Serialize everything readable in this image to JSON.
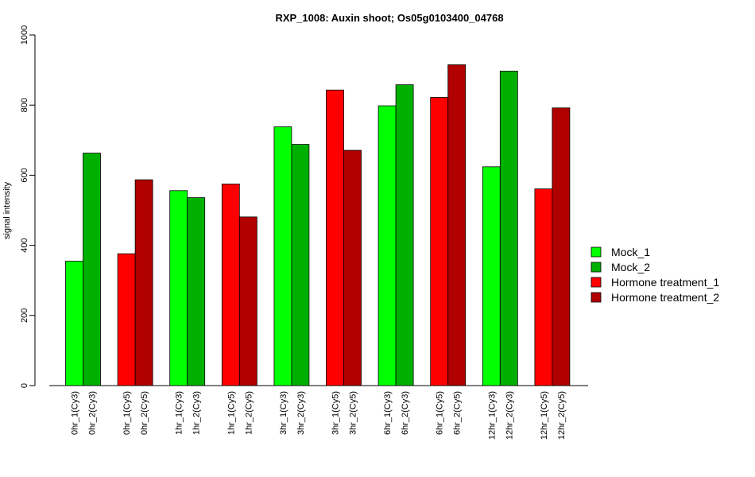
{
  "chart_data": {
    "type": "bar",
    "title": "RXP_1008: Auxin shoot; Os05g0103400_04768",
    "ylabel": "signal intensity",
    "xlabel": "",
    "ylim": [
      0,
      1000
    ],
    "yticks": [
      0,
      200,
      400,
      600,
      800,
      1000
    ],
    "grid": false,
    "legend_position": "right",
    "legend": [
      {
        "name": "Mock_1",
        "color": "#00ff00"
      },
      {
        "name": "Mock_2",
        "color": "#00b000"
      },
      {
        "name": "Hormone treatment_1",
        "color": "#ff0000"
      },
      {
        "name": "Hormone treatment_2",
        "color": "#b00000"
      }
    ],
    "categories": [
      "0hr_1(Cy3)",
      "0hr_2(Cy3)",
      "0hr_1(Cy5)",
      "0hr_2(Cy5)",
      "1hr_1(Cy3)",
      "1hr_2(Cy3)",
      "1hr_1(Cy5)",
      "1hr_2(Cy5)",
      "3hr_1(Cy3)",
      "3hr_2(Cy3)",
      "3hr_1(Cy5)",
      "3hr_2(Cy5)",
      "6hr_1(Cy3)",
      "6hr_2(Cy3)",
      "6hr_1(Cy5)",
      "6hr_2(Cy5)",
      "12hr_1(Cy3)",
      "12hr_2(Cy3)",
      "12hr_1(Cy5)",
      "12hr_2(Cy5)"
    ],
    "values": [
      355,
      663,
      376,
      587,
      556,
      536,
      575,
      481,
      738,
      688,
      843,
      671,
      798,
      858,
      822,
      915,
      624,
      897,
      561,
      792
    ],
    "bar_colors": [
      "#00ff00",
      "#00b000",
      "#ff0000",
      "#b00000",
      "#00ff00",
      "#00b000",
      "#ff0000",
      "#b00000",
      "#00ff00",
      "#00b000",
      "#ff0000",
      "#b00000",
      "#00ff00",
      "#00b000",
      "#ff0000",
      "#b00000",
      "#00ff00",
      "#00b000",
      "#ff0000",
      "#b00000"
    ]
  }
}
